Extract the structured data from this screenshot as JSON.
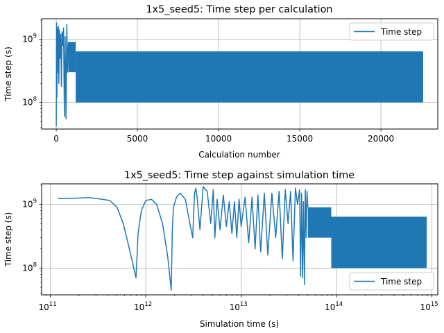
{
  "chart_data": [
    {
      "type": "line",
      "title": "1x5_seed5: Time step per calculation",
      "xlabel": "Calculation number",
      "ylabel": "Time step (s)",
      "xscale": "linear",
      "yscale": "log",
      "xlim": [
        -900,
        23500
      ],
      "ylim": [
        38000000,
        2100000000
      ],
      "xticks": [
        0,
        5000,
        10000,
        15000,
        20000
      ],
      "xtick_labels": [
        "0",
        "5000",
        "10000",
        "15000",
        "20000"
      ],
      "yticks": [
        100000000,
        1000000000
      ],
      "ytick_labels": [
        [
          "10",
          "8"
        ],
        [
          "10",
          "9"
        ]
      ],
      "grid": true,
      "legend": {
        "entries": [
          "Time step"
        ],
        "position": "top-right"
      },
      "color": "#1f77b4",
      "series": [
        {
          "name": "Time step",
          "initial_transient": {
            "x": [
              0,
              20,
              40,
              70,
              100,
              130,
              160,
              200,
              240,
              280,
              320,
              360,
              400,
              450,
              500,
              550,
              600,
              650,
              700,
              750
            ],
            "y": [
              42000000,
              1800000000,
              120000000,
              1500000000,
              300000000,
              1600000000,
              200000000,
              1400000000,
              500000000,
              1200000000,
              180000000,
              1300000000,
              800000000,
              1500000000,
              60000000,
              1100000000,
              55000000,
              1700000000,
              300000000,
              900000000
            ]
          },
          "oscillation_bands": [
            {
              "x_range": [
                750,
                1200
              ],
              "y_low": 300000000,
              "y_high": 900000000
            },
            {
              "x_range": [
                1200,
                22600
              ],
              "y_low": 100000000,
              "y_high": 640000000
            }
          ]
        }
      ]
    },
    {
      "type": "line",
      "title": "1x5_seed5: Time step against simulation time",
      "xlabel": "Simulation time (s)",
      "ylabel": "Time step (s)",
      "xscale": "log",
      "yscale": "log",
      "xlim": [
        81000000000,
        1150000000000000
      ],
      "ylim": [
        38000000,
        2100000000
      ],
      "xticks": [
        100000000000,
        1000000000000,
        10000000000000,
        100000000000000,
        1000000000000000
      ],
      "xtick_labels": [
        [
          "10",
          "11"
        ],
        [
          "10",
          "12"
        ],
        [
          "10",
          "13"
        ],
        [
          "10",
          "14"
        ],
        [
          "10",
          "15"
        ]
      ],
      "yticks": [
        100000000,
        1000000000
      ],
      "ytick_labels": [
        [
          "10",
          "8"
        ],
        [
          "10",
          "9"
        ]
      ],
      "grid": true,
      "legend": {
        "entries": [
          "Time step"
        ],
        "position": "bottom-right"
      },
      "color": "#1f77b4",
      "series": [
        {
          "name": "Time step",
          "x": [
            120000000000,
            180000000000,
            250000000000,
            330000000000,
            420000000000,
            500000000000,
            580000000000,
            650000000000,
            720000000000,
            790000000000,
            810000000000,
            830000000000,
            900000000000,
            1000000000000,
            1150000000000,
            1300000000000,
            1500000000000,
            1700000000000,
            1850000000000,
            1900000000000,
            1950000000000,
            2100000000000,
            2300000000000,
            2600000000000,
            2900000000000,
            3100000000000,
            3250000000000,
            3350000000000,
            3450000000000,
            3700000000000,
            4000000000000,
            4400000000000,
            4800000000000,
            5100000000000,
            5300000000000,
            5600000000000,
            6000000000000,
            6500000000000,
            7000000000000,
            7500000000000,
            8000000000000,
            8500000000000,
            9000000000000,
            9500000000000,
            10000000000000,
            11000000000000,
            12000000000000,
            13000000000000,
            14000000000000,
            15000000000000,
            16000000000000,
            17500000000000,
            19000000000000,
            21000000000000,
            23000000000000,
            25000000000000,
            27000000000000,
            29000000000000,
            31000000000000,
            33000000000000,
            35000000000000,
            37000000000000,
            39000000000000,
            41000000000000,
            42000000000000,
            43000000000000,
            44000000000000,
            45000000000000,
            46000000000000,
            47000000000000,
            48000000000000,
            49000000000000,
            50000000000000
          ],
          "y": [
            1230000000,
            1250000000,
            1280000000,
            1220000000,
            1150000000,
            900000000,
            500000000,
            250000000,
            130000000,
            70000000,
            150000000,
            350000000,
            800000000,
            1150000000,
            1200000000,
            1000000000,
            500000000,
            150000000,
            45000000,
            400000000,
            900000000,
            1300000000,
            1500000000,
            1200000000,
            500000000,
            300000000,
            1500000000,
            1800000000,
            1300000000,
            400000000,
            1900000000,
            1600000000,
            500000000,
            1700000000,
            300000000,
            1200000000,
            400000000,
            1400000000,
            450000000,
            1100000000,
            350000000,
            1100000000,
            300000000,
            1200000000,
            450000000,
            1300000000,
            250000000,
            1300000000,
            200000000,
            1400000000,
            180000000,
            1500000000,
            160000000,
            1500000000,
            300000000,
            1600000000,
            140000000,
            1700000000,
            500000000,
            1600000000,
            130000000,
            1800000000,
            1000000000,
            1700000000,
            75000000,
            1500000000,
            70000000,
            1100000000,
            55000000,
            1700000000,
            300000000,
            1600000000,
            900000000
          ],
          "oscillation_bands": [
            {
              "x_range": [
                50000000000000,
                88000000000000
              ],
              "y_low": 300000000,
              "y_high": 900000000
            },
            {
              "x_range": [
                88000000000000,
                880000000000000
              ],
              "y_low": 100000000,
              "y_high": 640000000
            }
          ]
        }
      ]
    }
  ]
}
